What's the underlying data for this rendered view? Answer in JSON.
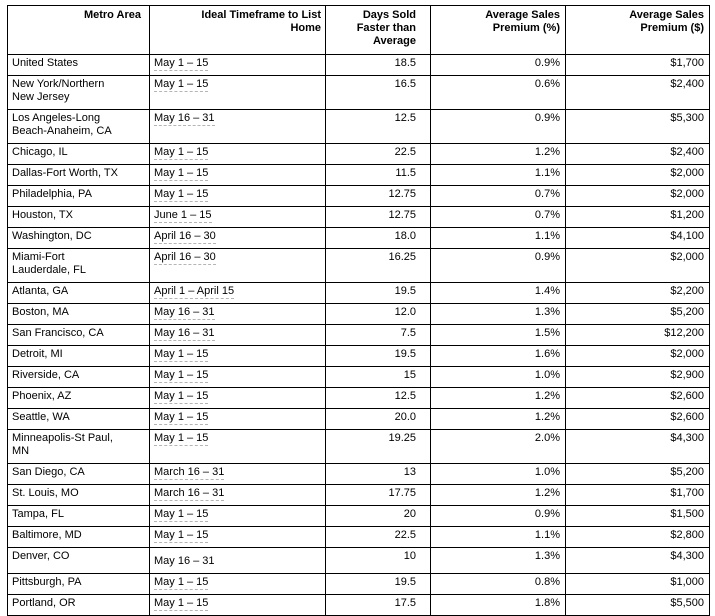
{
  "page": {
    "background": "#ffffff",
    "border_color": "#000000",
    "squiggle_color": "#b5b5b5"
  },
  "table": {
    "columns": [
      "Metro Area",
      "Ideal Timeframe to List Home",
      "Days Sold Faster than Average",
      "Average Sales Premium (%)",
      "Average Sales Premium ($)"
    ],
    "rows": [
      {
        "metro": "United States",
        "timeframe": "May 1 – 15",
        "days": "18.5",
        "premium_pct": "0.9%",
        "premium_usd": "$1,700",
        "timeframe_underlined": true,
        "timeframe_lowered": false
      },
      {
        "metro": "New York/Northern New Jersey",
        "timeframe": "May 1 – 15",
        "days": "16.5",
        "premium_pct": "0.6%",
        "premium_usd": "$2,400",
        "timeframe_underlined": true,
        "timeframe_lowered": false
      },
      {
        "metro": "Los Angeles-Long Beach-Anaheim, CA",
        "timeframe": "May 16 – 31",
        "days": "12.5",
        "premium_pct": "0.9%",
        "premium_usd": "$5,300",
        "timeframe_underlined": true,
        "timeframe_lowered": false
      },
      {
        "metro": "Chicago, IL",
        "timeframe": "May 1 – 15",
        "days": "22.5",
        "premium_pct": "1.2%",
        "premium_usd": "$2,400",
        "timeframe_underlined": true,
        "timeframe_lowered": false
      },
      {
        "metro": "Dallas-Fort Worth, TX",
        "timeframe": "May 1 – 15",
        "days": "11.5",
        "premium_pct": "1.1%",
        "premium_usd": "$2,000",
        "timeframe_underlined": true,
        "timeframe_lowered": false
      },
      {
        "metro": "Philadelphia, PA",
        "timeframe": "May 1 – 15",
        "days": "12.75",
        "premium_pct": "0.7%",
        "premium_usd": "$2,000",
        "timeframe_underlined": true,
        "timeframe_lowered": false
      },
      {
        "metro": "Houston, TX",
        "timeframe": "June 1 – 15",
        "days": "12.75",
        "premium_pct": "0.7%",
        "premium_usd": "$1,200",
        "timeframe_underlined": true,
        "timeframe_lowered": false
      },
      {
        "metro": "Washington, DC",
        "timeframe": "April 16 – 30",
        "days": "18.0",
        "premium_pct": "1.1%",
        "premium_usd": "$4,100",
        "timeframe_underlined": true,
        "timeframe_lowered": false
      },
      {
        "metro": "Miami-Fort Lauderdale, FL",
        "timeframe": "April 16 – 30",
        "days": "16.25",
        "premium_pct": "0.9%",
        "premium_usd": "$2,000",
        "timeframe_underlined": true,
        "timeframe_lowered": false
      },
      {
        "metro": "Atlanta, GA",
        "timeframe": "April 1 – April 15",
        "days": "19.5",
        "premium_pct": "1.4%",
        "premium_usd": "$2,200",
        "timeframe_underlined": true,
        "timeframe_lowered": false
      },
      {
        "metro": "Boston, MA",
        "timeframe": "May 16 – 31",
        "days": "12.0",
        "premium_pct": "1.3%",
        "premium_usd": "$5,200",
        "timeframe_underlined": true,
        "timeframe_lowered": false
      },
      {
        "metro": "San Francisco, CA",
        "timeframe": "May 16 – 31",
        "days": "7.5",
        "premium_pct": "1.5%",
        "premium_usd": "$12,200",
        "timeframe_underlined": true,
        "timeframe_lowered": false
      },
      {
        "metro": "Detroit, MI",
        "timeframe": "May 1 – 15",
        "days": "19.5",
        "premium_pct": "1.6%",
        "premium_usd": "$2,000",
        "timeframe_underlined": true,
        "timeframe_lowered": false
      },
      {
        "metro": "Riverside, CA",
        "timeframe": "May 1 – 15",
        "days": "15",
        "premium_pct": "1.0%",
        "premium_usd": "$2,900",
        "timeframe_underlined": true,
        "timeframe_lowered": false
      },
      {
        "metro": "Phoenix, AZ",
        "timeframe": "May 1 – 15",
        "days": "12.5",
        "premium_pct": "1.2%",
        "premium_usd": "$2,600",
        "timeframe_underlined": true,
        "timeframe_lowered": false
      },
      {
        "metro": "Seattle, WA",
        "timeframe": "May 1 – 15",
        "days": "20.0",
        "premium_pct": "1.2%",
        "premium_usd": "$2,600",
        "timeframe_underlined": true,
        "timeframe_lowered": false
      },
      {
        "metro": "Minneapolis-St Paul, MN",
        "timeframe": "May 1 – 15",
        "days": "19.25",
        "premium_pct": "2.0%",
        "premium_usd": "$4,300",
        "timeframe_underlined": true,
        "timeframe_lowered": false
      },
      {
        "metro": "San Diego, CA",
        "timeframe": "March 16 – 31",
        "days": "13",
        "premium_pct": "1.0%",
        "premium_usd": "$5,200",
        "timeframe_underlined": true,
        "timeframe_lowered": false
      },
      {
        "metro": "St. Louis, MO",
        "timeframe": "March 16 – 31",
        "days": "17.75",
        "premium_pct": "1.2%",
        "premium_usd": "$1,700",
        "timeframe_underlined": true,
        "timeframe_lowered": false
      },
      {
        "metro": "Tampa, FL",
        "timeframe": "May 1 – 15",
        "days": "20",
        "premium_pct": "0.9%",
        "premium_usd": "$1,500",
        "timeframe_underlined": true,
        "timeframe_lowered": false
      },
      {
        "metro": "Baltimore, MD",
        "timeframe": "May 1 – 15",
        "days": "22.5",
        "premium_pct": "1.1%",
        "premium_usd": "$2,800",
        "timeframe_underlined": true,
        "timeframe_lowered": false
      },
      {
        "metro": "Denver, CO",
        "timeframe": "May 16 – 31",
        "days": "10",
        "premium_pct": "1.3%",
        "premium_usd": "$4,300",
        "timeframe_underlined": false,
        "timeframe_lowered": true
      },
      {
        "metro": "Pittsburgh, PA",
        "timeframe": "May 1 – 15",
        "days": "19.5",
        "premium_pct": "0.8%",
        "premium_usd": "$1,000",
        "timeframe_underlined": true,
        "timeframe_lowered": false
      },
      {
        "metro": "Portland, OR",
        "timeframe": "May 1 – 15",
        "days": "17.5",
        "premium_pct": "1.8%",
        "premium_usd": "$5,500",
        "timeframe_underlined": true,
        "timeframe_lowered": false
      }
    ]
  }
}
